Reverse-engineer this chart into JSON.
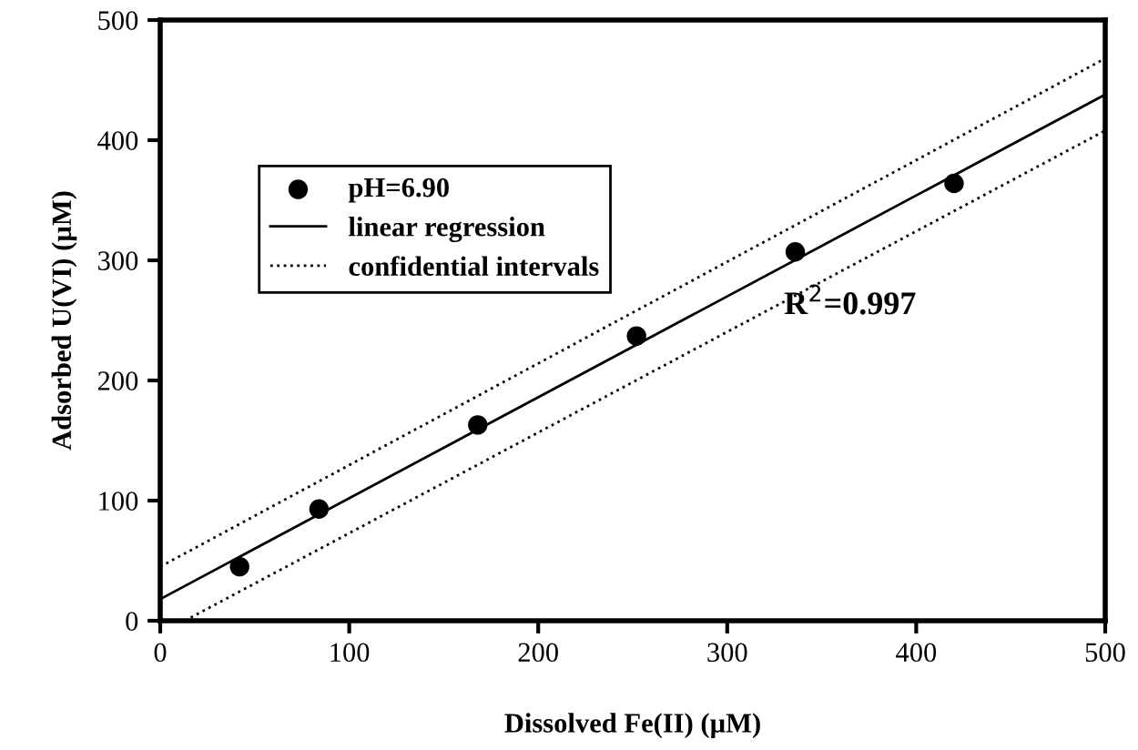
{
  "chart_data": {
    "type": "scatter",
    "xlabel": "Dissolved Fe(II) (µM)",
    "ylabel": "Adsorbed U(VI) (µM)",
    "xlim": [
      0,
      500
    ],
    "xticks": [
      0,
      100,
      200,
      300,
      400,
      500
    ],
    "ylim": [
      0,
      500
    ],
    "yticks": [
      0,
      100,
      200,
      300,
      400,
      500
    ],
    "grid": false,
    "legend": "top left",
    "annotations": [
      "R$^{2}$=0.997"
    ],
    "series": [
      {
        "name": "pH=6.90",
        "marker": "circle",
        "color": "#000000",
        "x": [
          42,
          84,
          168,
          252,
          336,
          420
        ],
        "values": [
          45,
          93,
          163,
          237,
          307,
          364
        ]
      },
      {
        "name": "linear regression",
        "type": "line",
        "line_style": "solid",
        "color": "#000000",
        "x": [
          0,
          500
        ],
        "values": [
          18,
          438
        ]
      },
      {
        "name": "confidential intervals",
        "type": "line",
        "line_style": "dotted",
        "color": "#000000",
        "x": [
          0,
          500
        ],
        "values": [
          45,
          468
        ]
      },
      {
        "type": "line",
        "line_style": "dotted",
        "color": "#000000",
        "x": [
          13,
          500
        ],
        "values": [
          0,
          408
        ]
      }
    ]
  }
}
